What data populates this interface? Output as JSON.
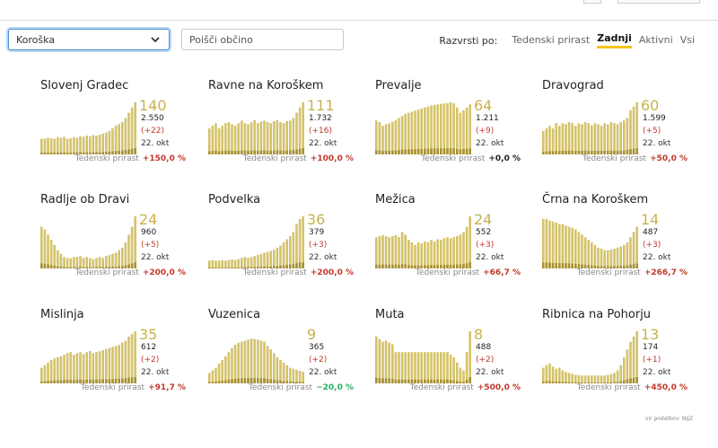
{
  "controls": {
    "region_value": "Koroška",
    "search_placeholder": "Poišči občino",
    "sort_label": "Razvrsti po:",
    "sort_options": [
      "Tedenski prirast",
      "Zadnji",
      "Aktivni",
      "Vsi"
    ],
    "sort_active": "Zadnji"
  },
  "colors": {
    "bar": "#d4c36a",
    "bar_dark": "#a89030",
    "up": "#c0392b",
    "down": "#27ae60",
    "neutral": "#222222",
    "accent": "#f5c518"
  },
  "growth_label": "Tedenski prirast",
  "cards": [
    {
      "name": "Slovenj Gradec",
      "latest": "140",
      "total": "2.550",
      "change": "(+22)",
      "date": "22. okt",
      "growth": "+150,0 %",
      "trend": "up",
      "bars": [
        0.3,
        0.3,
        0.32,
        0.31,
        0.3,
        0.33,
        0.32,
        0.34,
        0.3,
        0.31,
        0.33,
        0.32,
        0.35,
        0.34,
        0.36,
        0.35,
        0.37,
        0.36,
        0.38,
        0.4,
        0.42,
        0.45,
        0.5,
        0.55,
        0.58,
        0.62,
        0.7,
        0.8,
        0.9,
        1.0
      ]
    },
    {
      "name": "Ravne na Koroškem",
      "latest": "111",
      "total": "1.732",
      "change": "(+16)",
      "date": "22. okt",
      "growth": "+100,0 %",
      "trend": "up",
      "bars": [
        0.5,
        0.55,
        0.6,
        0.5,
        0.55,
        0.6,
        0.62,
        0.58,
        0.55,
        0.6,
        0.65,
        0.6,
        0.58,
        0.62,
        0.66,
        0.6,
        0.63,
        0.65,
        0.62,
        0.6,
        0.64,
        0.66,
        0.62,
        0.6,
        0.64,
        0.65,
        0.7,
        0.8,
        0.9,
        1.0
      ]
    },
    {
      "name": "Prevalje",
      "latest": "64",
      "total": "1.211",
      "change": "(+9)",
      "date": "22. okt",
      "growth": "+0,0 %",
      "trend": "neutral",
      "bars": [
        0.65,
        0.62,
        0.55,
        0.58,
        0.6,
        0.63,
        0.66,
        0.7,
        0.74,
        0.78,
        0.8,
        0.82,
        0.84,
        0.86,
        0.88,
        0.9,
        0.92,
        0.94,
        0.95,
        0.96,
        0.97,
        0.98,
        0.98,
        1.0,
        0.98,
        0.9,
        0.8,
        0.85,
        0.9,
        0.96
      ]
    },
    {
      "name": "Dravograd",
      "latest": "60",
      "total": "1.599",
      "change": "(+5)",
      "date": "22. okt",
      "growth": "+50,0 %",
      "trend": "up",
      "bars": [
        0.45,
        0.5,
        0.55,
        0.5,
        0.6,
        0.55,
        0.6,
        0.58,
        0.62,
        0.6,
        0.55,
        0.6,
        0.58,
        0.62,
        0.6,
        0.56,
        0.6,
        0.58,
        0.55,
        0.6,
        0.58,
        0.62,
        0.6,
        0.58,
        0.62,
        0.65,
        0.7,
        0.85,
        0.92,
        1.0
      ]
    },
    {
      "name": "Radlje ob Dravi",
      "latest": "24",
      "total": "960",
      "change": "(+5)",
      "date": "22. okt",
      "growth": "+200,0 %",
      "trend": "up",
      "bars": [
        0.8,
        0.75,
        0.65,
        0.55,
        0.45,
        0.35,
        0.28,
        0.22,
        0.2,
        0.2,
        0.22,
        0.22,
        0.24,
        0.2,
        0.22,
        0.2,
        0.18,
        0.2,
        0.22,
        0.2,
        0.24,
        0.26,
        0.28,
        0.3,
        0.35,
        0.4,
        0.5,
        0.65,
        0.8,
        1.0
      ]
    },
    {
      "name": "Podvelka",
      "latest": "36",
      "total": "379",
      "change": "(+3)",
      "date": "22. okt",
      "growth": "+200,0 %",
      "trend": "up",
      "bars": [
        0.15,
        0.16,
        0.15,
        0.15,
        0.16,
        0.15,
        0.16,
        0.17,
        0.16,
        0.18,
        0.2,
        0.22,
        0.2,
        0.22,
        0.24,
        0.26,
        0.28,
        0.3,
        0.32,
        0.34,
        0.36,
        0.4,
        0.44,
        0.5,
        0.56,
        0.62,
        0.7,
        0.85,
        0.95,
        1.0
      ]
    },
    {
      "name": "Mežica",
      "latest": "24",
      "total": "552",
      "change": "(+3)",
      "date": "22. okt",
      "growth": "+66,7 %",
      "trend": "up",
      "bars": [
        0.6,
        0.62,
        0.64,
        0.62,
        0.6,
        0.62,
        0.64,
        0.6,
        0.7,
        0.65,
        0.55,
        0.5,
        0.45,
        0.5,
        0.48,
        0.52,
        0.5,
        0.55,
        0.52,
        0.56,
        0.55,
        0.58,
        0.6,
        0.58,
        0.6,
        0.62,
        0.65,
        0.7,
        0.8,
        1.0
      ]
    },
    {
      "name": "Črna na Koroškem",
      "latest": "14",
      "total": "487",
      "change": "(+3)",
      "date": "22. okt",
      "growth": "+266,7 %",
      "trend": "up",
      "bars": [
        0.95,
        0.95,
        0.92,
        0.9,
        0.88,
        0.85,
        0.85,
        0.82,
        0.8,
        0.78,
        0.75,
        0.7,
        0.65,
        0.6,
        0.55,
        0.5,
        0.45,
        0.4,
        0.38,
        0.35,
        0.35,
        0.36,
        0.38,
        0.4,
        0.42,
        0.45,
        0.5,
        0.6,
        0.7,
        0.8
      ]
    },
    {
      "name": "Mislinja",
      "latest": "35",
      "total": "612",
      "change": "(+2)",
      "date": "22. okt",
      "growth": "+91,7 %",
      "trend": "up",
      "bars": [
        0.3,
        0.35,
        0.4,
        0.45,
        0.48,
        0.5,
        0.52,
        0.55,
        0.58,
        0.6,
        0.55,
        0.58,
        0.6,
        0.56,
        0.6,
        0.62,
        0.58,
        0.6,
        0.62,
        0.64,
        0.66,
        0.68,
        0.7,
        0.72,
        0.74,
        0.78,
        0.82,
        0.9,
        0.95,
        1.0
      ]
    },
    {
      "name": "Vuzenica",
      "latest": "9",
      "total": "365",
      "change": "(+2)",
      "date": "22. okt",
      "growth": "−20,0 %",
      "trend": "down",
      "bars": [
        0.2,
        0.25,
        0.3,
        0.38,
        0.45,
        0.52,
        0.6,
        0.68,
        0.74,
        0.78,
        0.8,
        0.82,
        0.84,
        0.86,
        0.85,
        0.84,
        0.82,
        0.8,
        0.72,
        0.65,
        0.58,
        0.5,
        0.45,
        0.4,
        0.35,
        0.3,
        0.28,
        0.26,
        0.24,
        0.22
      ]
    },
    {
      "name": "Muta",
      "latest": "8",
      "total": "488",
      "change": "(+2)",
      "date": "22. okt",
      "growth": "+500,0 %",
      "trend": "up",
      "bars": [
        0.9,
        0.85,
        0.8,
        0.82,
        0.78,
        0.75,
        0.6,
        0.6,
        0.6,
        0.6,
        0.6,
        0.6,
        0.6,
        0.6,
        0.6,
        0.6,
        0.6,
        0.6,
        0.6,
        0.6,
        0.6,
        0.6,
        0.6,
        0.55,
        0.5,
        0.4,
        0.3,
        0.25,
        0.6,
        1.0
      ]
    },
    {
      "name": "Ribnica na Pohorju",
      "latest": "13",
      "total": "174",
      "change": "(+1)",
      "date": "22. okt",
      "growth": "+450,0 %",
      "trend": "up",
      "bars": [
        0.3,
        0.35,
        0.38,
        0.32,
        0.28,
        0.3,
        0.25,
        0.22,
        0.2,
        0.18,
        0.16,
        0.16,
        0.15,
        0.15,
        0.15,
        0.15,
        0.15,
        0.15,
        0.15,
        0.15,
        0.16,
        0.18,
        0.2,
        0.25,
        0.35,
        0.5,
        0.65,
        0.8,
        0.9,
        1.0
      ]
    }
  ],
  "footer": {
    "source": "vir podatkov: NIJZ"
  }
}
